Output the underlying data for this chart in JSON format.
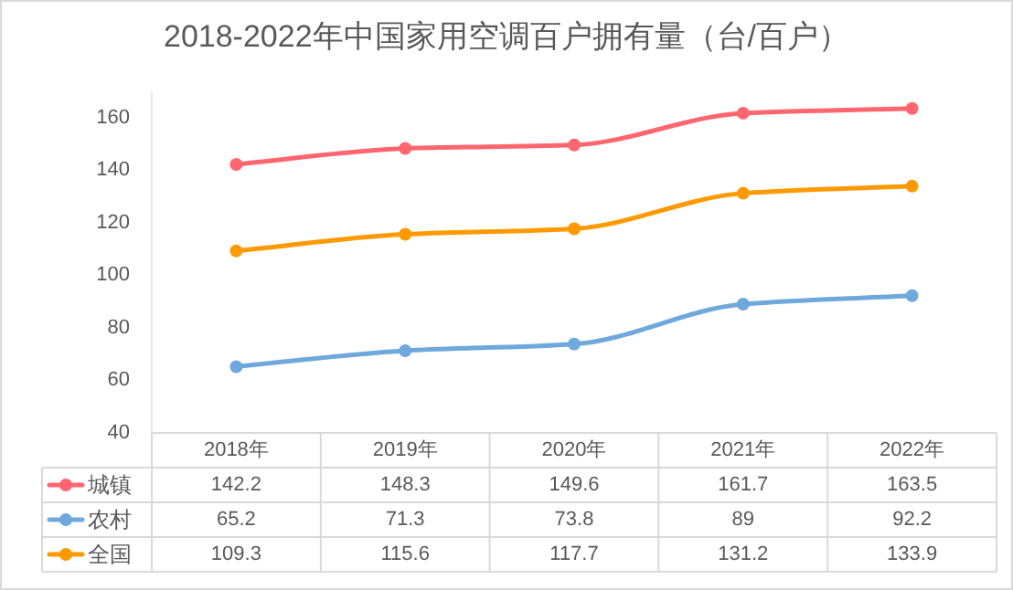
{
  "chart_data": {
    "type": "line",
    "title": "2018-2022年中国家用空调百户拥有量（台/百户）",
    "categories": [
      "2018年",
      "2019年",
      "2020年",
      "2021年",
      "2022年"
    ],
    "series": [
      {
        "name": "城镇",
        "color": "#ff6670",
        "values": [
          142.2,
          148.3,
          149.6,
          161.7,
          163.5
        ]
      },
      {
        "name": "农村",
        "color": "#6fa8dc",
        "values": [
          65.2,
          71.3,
          73.8,
          89,
          92.2
        ]
      },
      {
        "name": "全国",
        "color": "#ff9900",
        "values": [
          109.3,
          115.6,
          117.7,
          131.2,
          133.9
        ]
      }
    ],
    "ylim": [
      40,
      170
    ],
    "yticks": [
      40,
      60,
      80,
      100,
      120,
      140,
      160
    ],
    "grid": false,
    "legend": "bottom",
    "marker": "circle",
    "line_style": "solid",
    "data_labels": true
  }
}
